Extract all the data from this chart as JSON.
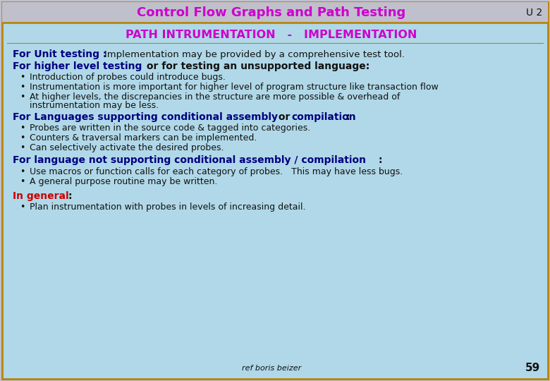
{
  "title": "Control Flow Graphs and Path Testing",
  "title_color": "#cc00cc",
  "title_bg": "#c0c0cc",
  "u2_label": "U 2",
  "subtitle": "PATH INTRUMENTATION   -   IMPLEMENTATION",
  "subtitle_color": "#cc00cc",
  "content_bg": "#b0d8e8",
  "border_color": "#b8860b",
  "body_text_color": "#000080",
  "black_color": "#111111",
  "red_color": "#cc0000",
  "footer": "ref boris beizer",
  "page_num": "59"
}
